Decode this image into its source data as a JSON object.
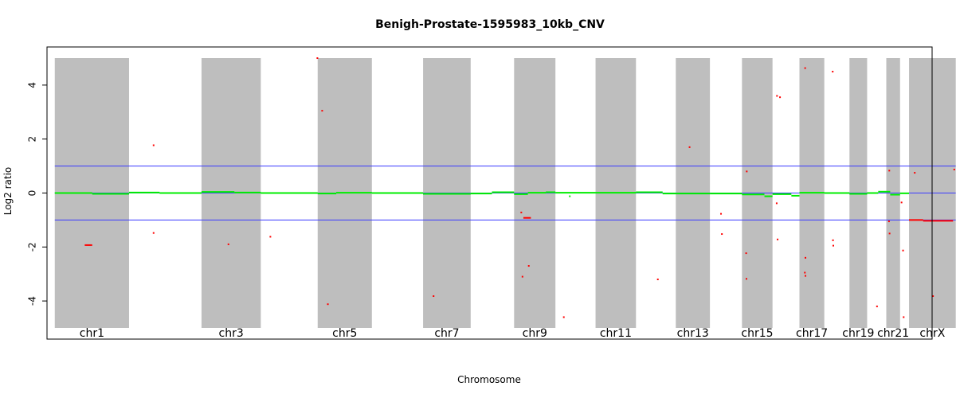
{
  "chart_data": {
    "type": "scatter",
    "title": "Benigh-Prostate-1595983_10kb_CNV",
    "xlabel": "Chromosome",
    "ylabel": "Log2 ratio",
    "ylim": [
      -5,
      5
    ],
    "yticks": [
      -4,
      -2,
      0,
      2,
      4
    ],
    "x_unit": "genomic position (Mb)",
    "xlim": [
      -26,
      2930
    ],
    "chromosome_bands": [
      {
        "name": "chr1",
        "start": 0,
        "end": 248,
        "shaded": true,
        "label": "chr1"
      },
      {
        "name": "chr2",
        "start": 248,
        "end": 490,
        "shaded": false,
        "label": ""
      },
      {
        "name": "chr3",
        "start": 490,
        "end": 688,
        "shaded": true,
        "label": "chr3"
      },
      {
        "name": "chr4",
        "start": 688,
        "end": 878,
        "shaded": false,
        "label": ""
      },
      {
        "name": "chr5",
        "start": 878,
        "end": 1059,
        "shaded": true,
        "label": "chr5"
      },
      {
        "name": "chr6",
        "start": 1059,
        "end": 1230,
        "shaded": false,
        "label": ""
      },
      {
        "name": "chr7",
        "start": 1230,
        "end": 1389,
        "shaded": true,
        "label": "chr7"
      },
      {
        "name": "chr8",
        "start": 1389,
        "end": 1534,
        "shaded": false,
        "label": ""
      },
      {
        "name": "chr9",
        "start": 1534,
        "end": 1672,
        "shaded": true,
        "label": "chr9"
      },
      {
        "name": "chr10",
        "start": 1672,
        "end": 1806,
        "shaded": false,
        "label": ""
      },
      {
        "name": "chr11",
        "start": 1806,
        "end": 1941,
        "shaded": true,
        "label": "chr11"
      },
      {
        "name": "chr12",
        "start": 1941,
        "end": 2074,
        "shaded": false,
        "label": ""
      },
      {
        "name": "chr13",
        "start": 2074,
        "end": 2188,
        "shaded": true,
        "label": "chr13"
      },
      {
        "name": "chr14",
        "start": 2188,
        "end": 2295,
        "shaded": false,
        "label": ""
      },
      {
        "name": "chr15",
        "start": 2295,
        "end": 2397,
        "shaded": true,
        "label": "chr15"
      },
      {
        "name": "chr16",
        "start": 2397,
        "end": 2487,
        "shaded": false,
        "label": ""
      },
      {
        "name": "chr17",
        "start": 2487,
        "end": 2570,
        "shaded": true,
        "label": "chr17"
      },
      {
        "name": "chr18",
        "start": 2570,
        "end": 2654,
        "shaded": false,
        "label": ""
      },
      {
        "name": "chr19",
        "start": 2654,
        "end": 2713,
        "shaded": true,
        "label": "chr19"
      },
      {
        "name": "chr20",
        "start": 2713,
        "end": 2777,
        "shaded": false,
        "label": ""
      },
      {
        "name": "chr21",
        "start": 2777,
        "end": 2823,
        "shaded": true,
        "label": "chr21"
      },
      {
        "name": "chr22",
        "start": 2823,
        "end": 2853,
        "shaded": false,
        "label": ""
      },
      {
        "name": "chrX",
        "start": 2853,
        "end": 3009,
        "shaded": true,
        "label": "chrX"
      }
    ],
    "reference_lines": [
      {
        "y": 1,
        "color": "#3a3aff"
      },
      {
        "y": 0,
        "color": "#3a3aff"
      },
      {
        "y": -1,
        "color": "#3a3aff"
      }
    ],
    "segments_green": [
      {
        "x0": 0,
        "x1": 125,
        "y": 0.0
      },
      {
        "x0": 125,
        "x1": 248,
        "y": -0.03
      },
      {
        "x0": 248,
        "x1": 350,
        "y": 0.02
      },
      {
        "x0": 350,
        "x1": 490,
        "y": 0.0
      },
      {
        "x0": 490,
        "x1": 600,
        "y": 0.04
      },
      {
        "x0": 600,
        "x1": 688,
        "y": 0.02
      },
      {
        "x0": 688,
        "x1": 878,
        "y": 0.0
      },
      {
        "x0": 878,
        "x1": 940,
        "y": -0.02
      },
      {
        "x0": 940,
        "x1": 1059,
        "y": 0.01
      },
      {
        "x0": 1059,
        "x1": 1230,
        "y": 0.0
      },
      {
        "x0": 1230,
        "x1": 1389,
        "y": -0.03
      },
      {
        "x0": 1389,
        "x1": 1460,
        "y": -0.02
      },
      {
        "x0": 1460,
        "x1": 1534,
        "y": 0.03
      },
      {
        "x0": 1534,
        "x1": 1580,
        "y": -0.04
      },
      {
        "x0": 1580,
        "x1": 1640,
        "y": 0.01
      },
      {
        "x0": 1640,
        "x1": 1672,
        "y": 0.03
      },
      {
        "x0": 1672,
        "x1": 1806,
        "y": 0.01
      },
      {
        "x0": 1806,
        "x1": 1941,
        "y": 0.01
      },
      {
        "x0": 1941,
        "x1": 2030,
        "y": 0.03
      },
      {
        "x0": 2030,
        "x1": 2188,
        "y": -0.02
      },
      {
        "x0": 2188,
        "x1": 2295,
        "y": -0.02
      },
      {
        "x0": 2295,
        "x1": 2370,
        "y": -0.05
      },
      {
        "x0": 2370,
        "x1": 2397,
        "y": -0.12
      },
      {
        "x0": 2397,
        "x1": 2460,
        "y": -0.04
      },
      {
        "x0": 2460,
        "x1": 2487,
        "y": -0.1
      },
      {
        "x0": 2487,
        "x1": 2570,
        "y": 0.01
      },
      {
        "x0": 2570,
        "x1": 2654,
        "y": 0.0
      },
      {
        "x0": 2654,
        "x1": 2713,
        "y": -0.03
      },
      {
        "x0": 2713,
        "x1": 2750,
        "y": 0.0
      },
      {
        "x0": 2750,
        "x1": 2790,
        "y": 0.05
      },
      {
        "x0": 2790,
        "x1": 2823,
        "y": -0.06
      },
      {
        "x0": 2823,
        "x1": 2853,
        "y": -0.01
      }
    ],
    "segments_red": [
      {
        "x0": 100,
        "x1": 125,
        "y": -1.93
      },
      {
        "x0": 1565,
        "x1": 1590,
        "y": -0.92
      },
      {
        "x0": 2853,
        "x1": 2900,
        "y": -1.0
      },
      {
        "x0": 2900,
        "x1": 3000,
        "y": -1.03
      }
    ],
    "points_red": [
      {
        "x": 330,
        "y": 1.77
      },
      {
        "x": 330,
        "y": -1.48
      },
      {
        "x": 580,
        "y": -1.9
      },
      {
        "x": 720,
        "y": -1.62
      },
      {
        "x": 877,
        "y": 5.0
      },
      {
        "x": 893,
        "y": 3.05
      },
      {
        "x": 912,
        "y": -4.12
      },
      {
        "x": 1265,
        "y": -3.82
      },
      {
        "x": 1558,
        "y": -0.72
      },
      {
        "x": 1562,
        "y": -3.1
      },
      {
        "x": 1583,
        "y": -2.7
      },
      {
        "x": 1700,
        "y": -4.6
      },
      {
        "x": 2014,
        "y": -3.2
      },
      {
        "x": 2120,
        "y": 1.7
      },
      {
        "x": 2228,
        "y": -1.52
      },
      {
        "x": 2225,
        "y": -0.77
      },
      {
        "x": 2311,
        "y": 0.8
      },
      {
        "x": 2309,
        "y": -2.23
      },
      {
        "x": 2310,
        "y": -3.18
      },
      {
        "x": 2411,
        "y": -0.38
      },
      {
        "x": 2412,
        "y": 3.6
      },
      {
        "x": 2422,
        "y": 3.55
      },
      {
        "x": 2414,
        "y": -1.72
      },
      {
        "x": 2506,
        "y": 4.63
      },
      {
        "x": 2507,
        "y": -2.4
      },
      {
        "x": 2505,
        "y": -2.95
      },
      {
        "x": 2507,
        "y": -3.07
      },
      {
        "x": 2598,
        "y": 4.5
      },
      {
        "x": 2599,
        "y": -1.75
      },
      {
        "x": 2600,
        "y": -1.95
      },
      {
        "x": 2746,
        "y": -4.2
      },
      {
        "x": 2787,
        "y": 0.83
      },
      {
        "x": 2786,
        "y": -1.05
      },
      {
        "x": 2788,
        "y": -1.5
      },
      {
        "x": 2828,
        "y": -0.35
      },
      {
        "x": 2833,
        "y": -2.13
      },
      {
        "x": 2835,
        "y": -4.6
      },
      {
        "x": 2872,
        "y": 0.75
      },
      {
        "x": 2933,
        "y": -3.82
      },
      {
        "x": 3004,
        "y": 0.87
      }
    ],
    "points_green": [
      {
        "x": 1720,
        "y": -0.12
      }
    ],
    "colors": {
      "band": "#bebebe",
      "segment": "#00ee00",
      "outlier": "#ff0000",
      "reference": "#3a3aff"
    }
  }
}
